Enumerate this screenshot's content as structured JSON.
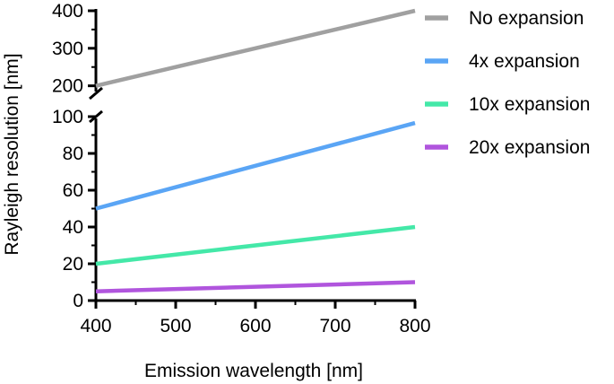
{
  "chart_data": {
    "type": "line",
    "title": "",
    "xlabel": "Emission wavelength [nm]",
    "ylabel": "Rayleigh resolution [nm]",
    "x": [
      400,
      800
    ],
    "xlim": [
      400,
      800
    ],
    "xticks": [
      "400",
      "500",
      "600",
      "700",
      "800"
    ],
    "y_axis_broken": true,
    "ylim_lower": [
      0,
      100
    ],
    "ylim_upper": [
      180,
      400
    ],
    "yticks_lower": [
      "0",
      "20",
      "40",
      "60",
      "80",
      "100"
    ],
    "yticks_upper": [
      "200",
      "300",
      "400"
    ],
    "grid": false,
    "legend_position": "right",
    "series": [
      {
        "name": "No expansion",
        "color": "#a0a0a0",
        "values": [
          200,
          400
        ]
      },
      {
        "name": "4x expansion",
        "color": "#5aa5f5",
        "values": [
          50,
          101
        ]
      },
      {
        "name": "10x expansion",
        "color": "#44e8a8",
        "values": [
          20,
          40
        ]
      },
      {
        "name": "20x expansion",
        "color": "#b055dd",
        "values": [
          5,
          10
        ]
      }
    ]
  }
}
